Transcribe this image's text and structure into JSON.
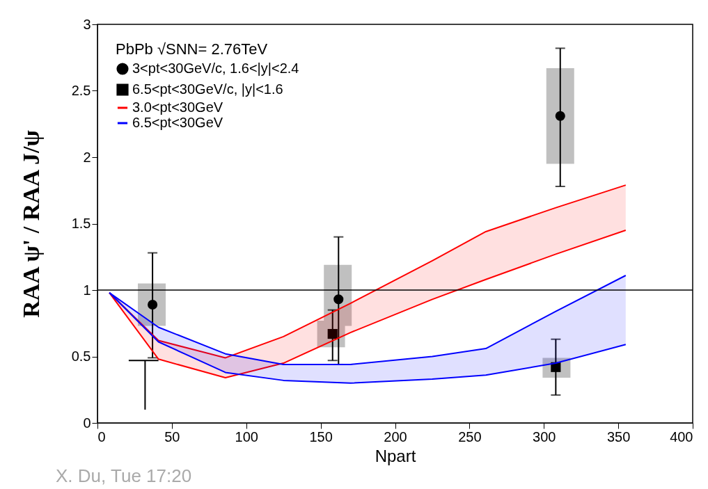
{
  "chart_data": {
    "type": "scatter",
    "xlabel": "Npart",
    "ylabel": "RAA ψ' / RAA J/ψ",
    "legend_title": "PbPb √SNN= 2.76TeV",
    "xlim": [
      0,
      400
    ],
    "xticks": [
      0,
      50,
      100,
      150,
      200,
      250,
      300,
      350,
      400
    ],
    "ylim": [
      0,
      3
    ],
    "yticks": [
      0,
      0.5,
      1,
      1.5,
      2,
      2.5,
      3
    ],
    "grid": false,
    "legend": "top left",
    "ref_lines": [
      {
        "axis": "y",
        "value": 1,
        "label": null,
        "color": "#000000"
      }
    ],
    "annotations": [
      "X. Du, Tue 17:20"
    ],
    "series": [
      {
        "type": "bar",
        "color": "#c0c0c0",
        "x": [
          36.5,
          157,
          161.5,
          308.5,
          311
        ],
        "base": [
          0.73,
          0.57,
          0.73,
          0.34,
          1.95
        ],
        "values": [
          0.32,
          0.2,
          0.46,
          0.15,
          0.72
        ]
      },
      {
        "name": "3<pt<30GeV/c, 1.6<|y|<2.4",
        "color": "#000000",
        "marker": "circle",
        "x": [
          37,
          162,
          311
        ],
        "values": [
          0.89,
          0.93,
          2.31
        ],
        "errors": [
          [
            0.49,
            1.28
          ],
          [
            0.44,
            1.4
          ],
          [
            1.78,
            2.82
          ]
        ]
      },
      {
        "name": "6.5<pt<30GeV/c, |y|<1.6",
        "color": "#000000",
        "marker": "square",
        "x": [
          158,
          308
        ],
        "values": [
          0.67,
          0.42
        ],
        "errors": [
          [
            0.47,
            0.85
          ],
          [
            0.21,
            0.63
          ]
        ]
      },
      {
        "type": "line",
        "color": "#000000",
        "x": [
          21,
          41
        ],
        "values": [
          0.47,
          0.47
        ]
      },
      {
        "type": "line",
        "color": "#000000",
        "x": [
          32,
          32
        ],
        "values": [
          0.47,
          0.1
        ]
      },
      {
        "type": "line",
        "name": "3.0<pt<30GeV",
        "color": "#ff0000",
        "x": [
          8,
          41,
          86,
          125,
          170,
          225,
          261,
          308,
          355
        ],
        "lower": [
          0.98,
          0.48,
          0.34,
          0.45,
          0.68,
          0.93,
          1.08,
          1.27,
          1.45
        ],
        "upper": [
          0.98,
          0.62,
          0.49,
          0.65,
          0.9,
          1.22,
          1.44,
          1.62,
          1.79
        ],
        "values": [
          0.98,
          0.62,
          0.49,
          0.65,
          0.9,
          1.22,
          1.44,
          1.62,
          1.79
        ]
      },
      {
        "type": "line",
        "color": "#ff0000",
        "x": [
          8,
          41,
          86,
          125,
          170,
          225,
          261,
          308,
          355
        ],
        "values": [
          0.98,
          0.48,
          0.34,
          0.45,
          0.68,
          0.93,
          1.08,
          1.27,
          1.45
        ]
      },
      {
        "type": "line",
        "name": "6.5<pt<30GeV",
        "color": "#0000ff",
        "x": [
          8,
          41,
          86,
          125,
          170,
          225,
          261,
          308,
          355
        ],
        "lower": [
          0.98,
          0.61,
          0.38,
          0.32,
          0.3,
          0.33,
          0.36,
          0.45,
          0.59
        ],
        "upper": [
          0.98,
          0.72,
          0.52,
          0.44,
          0.44,
          0.5,
          0.56,
          0.84,
          1.11
        ],
        "values": [
          0.98,
          0.72,
          0.52,
          0.44,
          0.44,
          0.5,
          0.56,
          0.84,
          1.11
        ]
      },
      {
        "type": "line",
        "color": "#0000ff",
        "x": [
          8,
          41,
          86,
          125,
          170,
          225,
          261,
          308,
          355
        ],
        "values": [
          0.98,
          0.61,
          0.38,
          0.32,
          0.3,
          0.33,
          0.36,
          0.45,
          0.59
        ]
      }
    ]
  }
}
